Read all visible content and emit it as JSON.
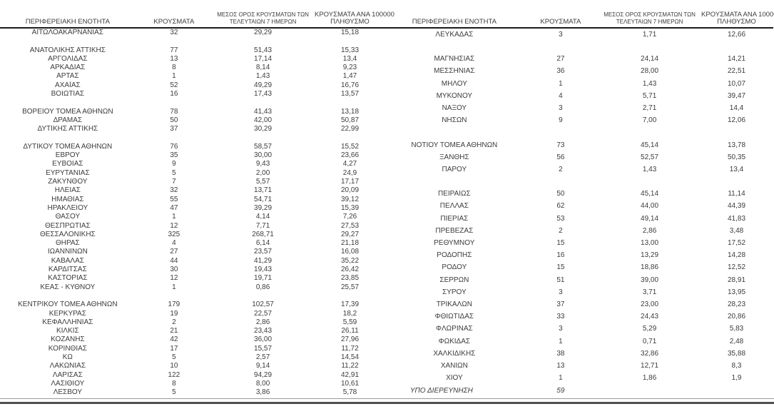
{
  "page": {
    "background_color": "#ffffff",
    "text_color": "#3c3c3c",
    "header_rule_color": "#1c1c1c",
    "bottom_rule_thin_color": "#9a9a9a",
    "bottom_rule_thick_color": "#4f4f4f"
  },
  "columns": {
    "region": "ΠΕΡΙΦΕΡΕΙΑΚΗ ΕΝΟΤΗΤΑ",
    "cases": "ΚΡΟΥΣΜΑΤΑ",
    "avg7_line1": "ΜΕΣΟΣ ΟΡΟΣ ΚΡΟΥΣΜΑΤΩΝ ΤΩΝ",
    "avg7_line2": "ΤΕΛΕΥΤΑΙΩΝ 7 ΗΜΕΡΩΝ",
    "per100k_line1": "ΚΡΟΥΣΜΑΤΑ ΑΝΑ 100000",
    "per100k_line2": "ΠΛΗΘΥΣΜΟ"
  },
  "left_table": {
    "rows": [
      {
        "region": "ΑΙΤΩΛΟΑΚΑΡΝΑΝΙΑΣ",
        "cases": "32",
        "avg7": "29,29",
        "per100k": "15,18"
      },
      {
        "spacer": true
      },
      {
        "region": "ΑΝΑΤΟΛΙΚΗΣ ΑΤΤΙΚΗΣ",
        "cases": "77",
        "avg7": "51,43",
        "per100k": "15,33"
      },
      {
        "region": "ΑΡΓΟΛΙΔΑΣ",
        "cases": "13",
        "avg7": "17,14",
        "per100k": "13,4"
      },
      {
        "region": "ΑΡΚΑΔΙΑΣ",
        "cases": "8",
        "avg7": "8,14",
        "per100k": "9,23"
      },
      {
        "region": "ΑΡΤΑΣ",
        "cases": "1",
        "avg7": "1,43",
        "per100k": "1,47"
      },
      {
        "region": "ΑΧΑΪΑΣ",
        "cases": "52",
        "avg7": "49,29",
        "per100k": "16,76"
      },
      {
        "region": "ΒΟΙΩΤΙΑΣ",
        "cases": "16",
        "avg7": "17,43",
        "per100k": "13,57"
      },
      {
        "spacer": true
      },
      {
        "region": "ΒΟΡΕΙΟΥ ΤΟΜΕΑ ΑΘΗΝΩΝ",
        "cases": "78",
        "avg7": "41,43",
        "per100k": "13,18"
      },
      {
        "region": "ΔΡΑΜΑΣ",
        "cases": "50",
        "avg7": "42,00",
        "per100k": "50,87"
      },
      {
        "region": "ΔΥΤΙΚΗΣ ΑΤΤΙΚΗΣ",
        "cases": "37",
        "avg7": "30,29",
        "per100k": "22,99"
      },
      {
        "spacer": true
      },
      {
        "region": "ΔΥΤΙΚΟΥ ΤΟΜΕΑ ΑΘΗΝΩΝ",
        "cases": "76",
        "avg7": "58,57",
        "per100k": "15,52"
      },
      {
        "region": "ΕΒΡΟΥ",
        "cases": "35",
        "avg7": "30,00",
        "per100k": "23,66"
      },
      {
        "region": "ΕΥΒΟΙΑΣ",
        "cases": "9",
        "avg7": "9,43",
        "per100k": "4,27"
      },
      {
        "region": "ΕΥΡΥΤΑΝΙΑΣ",
        "cases": "5",
        "avg7": "2,00",
        "per100k": "24,9"
      },
      {
        "region": "ΖΑΚΥΝΘΟΥ",
        "cases": "7",
        "avg7": "5,57",
        "per100k": "17,17"
      },
      {
        "region": "ΗΛΕΙΑΣ",
        "cases": "32",
        "avg7": "13,71",
        "per100k": "20,09"
      },
      {
        "region": "ΗΜΑΘΙΑΣ",
        "cases": "55",
        "avg7": "54,71",
        "per100k": "39,12"
      },
      {
        "region": "ΗΡΑΚΛΕΙΟΥ",
        "cases": "47",
        "avg7": "39,29",
        "per100k": "15,39"
      },
      {
        "region": "ΘΑΣΟΥ",
        "cases": "1",
        "avg7": "4,14",
        "per100k": "7,26"
      },
      {
        "region": "ΘΕΣΠΡΩΤΙΑΣ",
        "cases": "12",
        "avg7": "7,71",
        "per100k": "27,53"
      },
      {
        "region": "ΘΕΣΣΑΛΟΝΙΚΗΣ",
        "cases": "325",
        "avg7": "268,71",
        "per100k": "29,27"
      },
      {
        "region": "ΘΗΡΑΣ",
        "cases": "4",
        "avg7": "6,14",
        "per100k": "21,18"
      },
      {
        "region": "ΙΩΑΝΝΙΝΩΝ",
        "cases": "27",
        "avg7": "23,57",
        "per100k": "16,08"
      },
      {
        "region": "ΚΑΒΑΛΑΣ",
        "cases": "44",
        "avg7": "41,29",
        "per100k": "35,22"
      },
      {
        "region": "ΚΑΡΔΙΤΣΑΣ",
        "cases": "30",
        "avg7": "19,43",
        "per100k": "26,42"
      },
      {
        "region": "ΚΑΣΤΟΡΙΑΣ",
        "cases": "12",
        "avg7": "19,71",
        "per100k": "23,85"
      },
      {
        "region": "ΚΕΑΣ - ΚΥΘΝΟΥ",
        "cases": "1",
        "avg7": "0,86",
        "per100k": "25,57"
      },
      {
        "spacer": true
      },
      {
        "region": "ΚΕΝΤΡΙΚΟΥ ΤΟΜΕΑ ΑΘΗΝΩΝ",
        "cases": "179",
        "avg7": "102,57",
        "per100k": "17,39"
      },
      {
        "region": "ΚΕΡΚΥΡΑΣ",
        "cases": "19",
        "avg7": "22,57",
        "per100k": "18,2"
      },
      {
        "region": "ΚΕΦΑΛΛΗΝΙΑΣ",
        "cases": "2",
        "avg7": "2,86",
        "per100k": "5,59"
      },
      {
        "region": "ΚΙΛΚΙΣ",
        "cases": "21",
        "avg7": "23,43",
        "per100k": "26,11"
      },
      {
        "region": "ΚΟΖΑΝΗΣ",
        "cases": "42",
        "avg7": "36,00",
        "per100k": "27,96"
      },
      {
        "region": "ΚΟΡΙΝΘΙΑΣ",
        "cases": "17",
        "avg7": "15,57",
        "per100k": "11,72"
      },
      {
        "region": "ΚΩ",
        "cases": "5",
        "avg7": "2,57",
        "per100k": "14,54"
      },
      {
        "region": "ΛΑΚΩΝΙΑΣ",
        "cases": "10",
        "avg7": "9,14",
        "per100k": "11,22"
      },
      {
        "region": "ΛΑΡΙΣΑΣ",
        "cases": "122",
        "avg7": "94,29",
        "per100k": "42,91"
      },
      {
        "region": "ΛΑΣΙΘΙΟΥ",
        "cases": "8",
        "avg7": "8,00",
        "per100k": "10,61"
      },
      {
        "region": "ΛΕΣΒΟΥ",
        "cases": "5",
        "avg7": "3,86",
        "per100k": "5,78"
      }
    ]
  },
  "right_table": {
    "rows": [
      {
        "region": "ΛΕΥΚΑΔΑΣ",
        "cases": "3",
        "avg7": "1,71",
        "per100k": "12,66"
      },
      {
        "spacer": true
      },
      {
        "region": "ΜΑΓΝΗΣΙΑΣ",
        "cases": "27",
        "avg7": "24,14",
        "per100k": "14,21"
      },
      {
        "region": "ΜΕΣΣΗΝΙΑΣ",
        "cases": "36",
        "avg7": "28,00",
        "per100k": "22,51"
      },
      {
        "region": "ΜΗΛΟΥ",
        "cases": "1",
        "avg7": "1,43",
        "per100k": "10,07"
      },
      {
        "region": "ΜΥΚΟΝΟΥ",
        "cases": "4",
        "avg7": "5,71",
        "per100k": "39,47"
      },
      {
        "region": "ΝΑΞΟΥ",
        "cases": "3",
        "avg7": "2,71",
        "per100k": "14,4"
      },
      {
        "region": "ΝΗΣΩΝ",
        "cases": "9",
        "avg7": "7,00",
        "per100k": "12,06"
      },
      {
        "spacer": true
      },
      {
        "region": "ΝΟΤΙΟΥ ΤΟΜΕΑ ΑΘΗΝΩΝ",
        "cases": "73",
        "avg7": "45,14",
        "per100k": "13,78"
      },
      {
        "region": "ΞΑΝΘΗΣ",
        "cases": "56",
        "avg7": "52,57",
        "per100k": "50,35"
      },
      {
        "region": "ΠΑΡΟΥ",
        "cases": "2",
        "avg7": "1,43",
        "per100k": "13,4"
      },
      {
        "spacer": true
      },
      {
        "region": "ΠΕΙΡΑΙΩΣ",
        "cases": "50",
        "avg7": "45,14",
        "per100k": "11,14"
      },
      {
        "region": "ΠΕΛΛΑΣ",
        "cases": "62",
        "avg7": "44,00",
        "per100k": "44,39"
      },
      {
        "region": "ΠΙΕΡΙΑΣ",
        "cases": "53",
        "avg7": "49,14",
        "per100k": "41,83"
      },
      {
        "region": "ΠΡΕΒΕΖΑΣ",
        "cases": "2",
        "avg7": "2,86",
        "per100k": "3,48"
      },
      {
        "region": "ΡΕΘΥΜΝΟΥ",
        "cases": "15",
        "avg7": "13,00",
        "per100k": "17,52"
      },
      {
        "region": "ΡΟΔΟΠΗΣ",
        "cases": "16",
        "avg7": "13,29",
        "per100k": "14,28"
      },
      {
        "region": "ΡΟΔΟΥ",
        "cases": "15",
        "avg7": "18,86",
        "per100k": "12,52"
      },
      {
        "region": "ΣΕΡΡΩΝ",
        "cases": "51",
        "avg7": "39,00",
        "per100k": "28,91"
      },
      {
        "region": "ΣΥΡΟΥ",
        "cases": "3",
        "avg7": "3,71",
        "per100k": "13,95"
      },
      {
        "region": "ΤΡΙΚΑΛΩΝ",
        "cases": "37",
        "avg7": "23,00",
        "per100k": "28,23"
      },
      {
        "region": "ΦΘΙΩΤΙΔΑΣ",
        "cases": "33",
        "avg7": "24,43",
        "per100k": "20,86"
      },
      {
        "region": "ΦΛΩΡΙΝΑΣ",
        "cases": "3",
        "avg7": "5,29",
        "per100k": "5,83"
      },
      {
        "region": "ΦΩΚΙΔΑΣ",
        "cases": "1",
        "avg7": "0,71",
        "per100k": "2,48"
      },
      {
        "region": "ΧΑΛΚΙΔΙΚΗΣ",
        "cases": "38",
        "avg7": "32,86",
        "per100k": "35,88"
      },
      {
        "region": "ΧΑΝΙΩΝ",
        "cases": "13",
        "avg7": "12,71",
        "per100k": "8,3"
      },
      {
        "region": "ΧΙΟΥ",
        "cases": "1",
        "avg7": "1,86",
        "per100k": "1,9"
      },
      {
        "region": "ΥΠΟ ΔΙΕΡΕΥΝΗΣΗ",
        "cases": "59",
        "avg7": "",
        "per100k": "",
        "italic": true
      }
    ]
  }
}
